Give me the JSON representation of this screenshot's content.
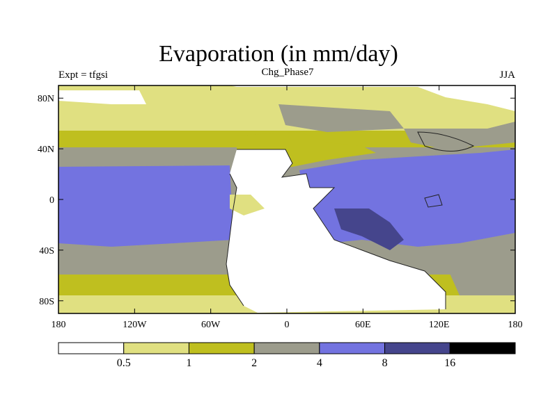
{
  "title": "Evaporation (in mm/day)",
  "subtitle_left": "Expt = tfgsi",
  "subtitle_center": "Chg_Phase7",
  "subtitle_right": "JJA",
  "map": {
    "projection": "cylindrical-equidistant",
    "lon_range": [
      -180,
      180
    ],
    "lat_range": [
      -90,
      90
    ],
    "x_ticks": [
      {
        "lon": -180,
        "label": "180"
      },
      {
        "lon": -120,
        "label": "120W"
      },
      {
        "lon": -60,
        "label": "60W"
      },
      {
        "lon": 0,
        "label": "0"
      },
      {
        "lon": 60,
        "label": "60E"
      },
      {
        "lon": 120,
        "label": "120E"
      },
      {
        "lon": 180,
        "label": "180"
      }
    ],
    "y_ticks": [
      {
        "lat": 80,
        "label": "80N"
      },
      {
        "lat": 40,
        "label": "40N"
      },
      {
        "lat": 0,
        "label": "0"
      },
      {
        "lat": -40,
        "label": "40S"
      },
      {
        "lat": -80,
        "label": "80S"
      }
    ]
  },
  "colorbar": {
    "colors": [
      "#ffffff",
      "#e0e081",
      "#bfbf1f",
      "#9c9c8c",
      "#7373e0",
      "#45458c",
      "#000000"
    ],
    "boundaries": [
      "0.5",
      "1",
      "2",
      "4",
      "8",
      "16"
    ]
  }
}
